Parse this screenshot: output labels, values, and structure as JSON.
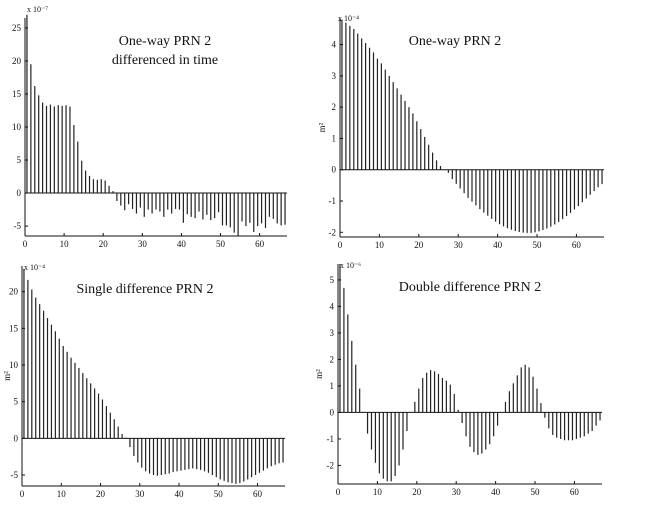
{
  "chart_data": [
    {
      "type": "bar",
      "title": "One-way PRN 2",
      "subtitle": "differenced in time",
      "xlabel": "",
      "ylabel": "",
      "exponent": "x 10⁻⁷",
      "xlim": [
        0,
        67
      ],
      "ylim": [
        -6.5,
        26.5
      ],
      "xticks": [
        0,
        10,
        20,
        30,
        40,
        50,
        60
      ],
      "yticks": [
        -5,
        0,
        5,
        10,
        15,
        20,
        25
      ],
      "values": [
        27,
        19.5,
        16.2,
        14.8,
        13.7,
        13.2,
        13.4,
        13.1,
        13.3,
        13.2,
        13.3,
        13.1,
        10.3,
        7.8,
        4.9,
        3.4,
        2.6,
        2.1,
        2.0,
        2.1,
        1.9,
        1.1,
        0.3,
        -1.2,
        -1.9,
        -2.6,
        -1.7,
        -2.4,
        -3.1,
        -2.2,
        -3.6,
        -2.5,
        -3.1,
        -2.5,
        -2.8,
        -3.6,
        -2.5,
        -3.1,
        -2.4,
        -2.5,
        -4.5,
        -3.2,
        -3.6,
        -3.8,
        -2.8,
        -4.0,
        -3.3,
        -4.1,
        -3.8,
        -2.9,
        -4.9,
        -4.9,
        -5.2,
        -6.0,
        -6.5,
        -4.3,
        -5.0,
        -4.5,
        -5.9,
        -5.0,
        -4.6,
        -5.3,
        -3.6,
        -3.9,
        -4.6,
        -4.9,
        -4.8
      ]
    },
    {
      "type": "bar",
      "title": "One-way PRN 2",
      "xlabel": "",
      "ylabel": "m²",
      "exponent": "x 10⁻⁴",
      "xlim": [
        0,
        67
      ],
      "ylim": [
        -2.15,
        4.85
      ],
      "xticks": [
        0,
        10,
        20,
        30,
        40,
        50,
        60
      ],
      "yticks": [
        -2,
        -1,
        0,
        1,
        2,
        3,
        4
      ],
      "values": [
        4.8,
        4.7,
        4.6,
        4.5,
        4.35,
        4.2,
        4.05,
        3.9,
        3.75,
        3.55,
        3.4,
        3.2,
        3.0,
        2.8,
        2.6,
        2.4,
        2.2,
        2.0,
        1.8,
        1.55,
        1.3,
        1.05,
        0.8,
        0.55,
        0.3,
        0.12,
        0.0,
        -0.1,
        -0.3,
        -0.45,
        -0.6,
        -0.75,
        -0.9,
        -1.02,
        -1.14,
        -1.26,
        -1.37,
        -1.47,
        -1.57,
        -1.66,
        -1.74,
        -1.81,
        -1.87,
        -1.92,
        -1.96,
        -1.99,
        -2.01,
        -2.02,
        -2.02,
        -2.0,
        -1.97,
        -1.93,
        -1.88,
        -1.82,
        -1.75,
        -1.67,
        -1.58,
        -1.48,
        -1.38,
        -1.27,
        -1.16,
        -1.04,
        -0.92,
        -0.8,
        -0.68,
        -0.56,
        -0.46
      ]
    },
    {
      "type": "bar",
      "title": "Single difference PRN 2",
      "xlabel": "",
      "ylabel": "m²",
      "exponent": "x 10⁻⁴",
      "xlim": [
        0,
        67
      ],
      "ylim": [
        -6.5,
        23.5
      ],
      "xticks": [
        0,
        10,
        20,
        30,
        40,
        50,
        60
      ],
      "yticks": [
        -5,
        0,
        5,
        10,
        15,
        20
      ],
      "values": [
        23.1,
        21.6,
        20.3,
        19.2,
        18.3,
        17.4,
        16.4,
        15.5,
        14.6,
        13.6,
        12.6,
        11.8,
        11.0,
        10.3,
        9.6,
        8.9,
        8.2,
        7.5,
        6.8,
        6.1,
        5.3,
        4.4,
        3.5,
        2.6,
        1.6,
        0.6,
        0.1,
        -1.2,
        -2.4,
        -3.3,
        -4.0,
        -4.5,
        -4.8,
        -5.0,
        -5.1,
        -5.0,
        -4.9,
        -4.8,
        -4.6,
        -4.5,
        -4.4,
        -4.3,
        -4.2,
        -4.1,
        -4.2,
        -4.3,
        -4.5,
        -4.7,
        -5.0,
        -5.3,
        -5.6,
        -5.8,
        -6.0,
        -6.1,
        -6.2,
        -6.1,
        -5.9,
        -5.6,
        -5.3,
        -5.0,
        -4.7,
        -4.4,
        -4.1,
        -3.8,
        -3.6,
        -3.4,
        -3.3
      ]
    },
    {
      "type": "bar",
      "title": "Double difference PRN 2",
      "xlabel": "",
      "ylabel": "m²",
      "exponent": "x 10⁻⁶",
      "xlim": [
        0,
        67
      ],
      "ylim": [
        -2.7,
        5.6
      ],
      "xticks": [
        0,
        10,
        20,
        30,
        40,
        50,
        60
      ],
      "yticks": [
        -2,
        -1,
        0,
        1,
        2,
        3,
        4,
        5
      ],
      "values": [
        5.6,
        4.7,
        3.7,
        2.7,
        1.8,
        0.9,
        0.0,
        -0.8,
        -1.4,
        -1.9,
        -2.3,
        -2.5,
        -2.6,
        -2.6,
        -2.4,
        -2.0,
        -1.4,
        -0.7,
        0.0,
        0.4,
        0.9,
        1.3,
        1.5,
        1.6,
        1.55,
        1.45,
        1.3,
        1.2,
        1.05,
        0.7,
        0.1,
        -0.4,
        -0.9,
        -1.3,
        -1.5,
        -1.6,
        -1.55,
        -1.4,
        -1.2,
        -0.9,
        -0.5,
        0.0,
        0.4,
        0.8,
        1.1,
        1.4,
        1.7,
        1.8,
        1.7,
        1.35,
        0.9,
        0.35,
        -0.2,
        -0.6,
        -0.85,
        -0.95,
        -1.0,
        -1.05,
        -1.05,
        -1.05,
        -1.0,
        -0.95,
        -0.9,
        -0.8,
        -0.7,
        -0.5,
        -0.3
      ]
    }
  ]
}
